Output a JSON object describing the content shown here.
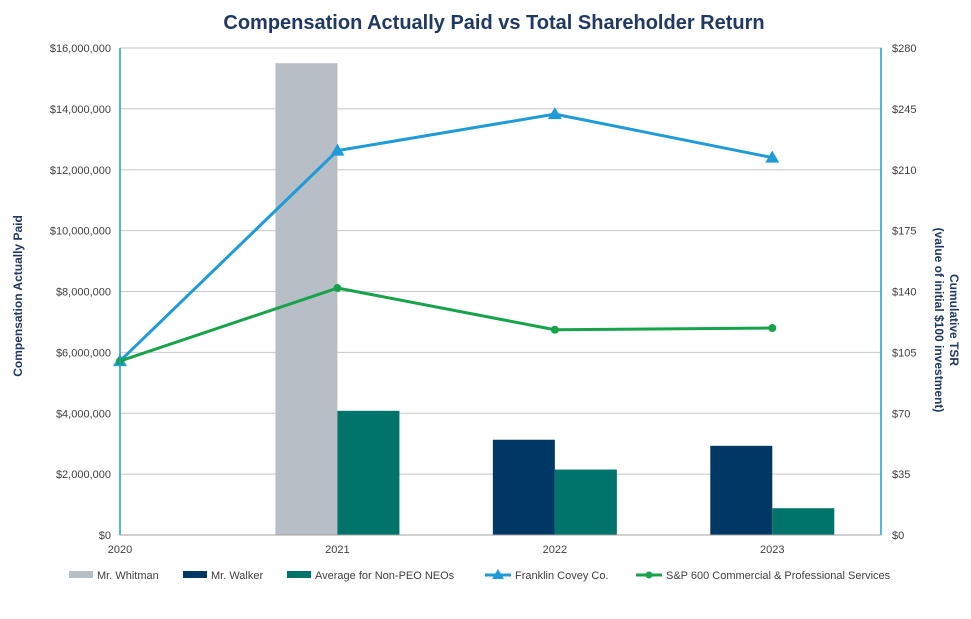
{
  "chart_data": {
    "type": "bar+line",
    "title": "Compensation Actually Paid vs Total Shareholder Return",
    "ylabel_left": "Compensation Actually Paid",
    "ylabel_right_line1": "Cumulative TSR",
    "ylabel_right_line2": "(value of initial $100 investment)",
    "categories": [
      "2020",
      "2021",
      "2022",
      "2023"
    ],
    "ylim_left": [
      0,
      16000000
    ],
    "ylim_right": [
      0,
      280
    ],
    "left_ticks": [
      "$0",
      "$2,000,000",
      "$4,000,000",
      "$6,000,000",
      "$8,000,000",
      "$10,000,000",
      "$12,000,000",
      "$14,000,000",
      "$16,000,000"
    ],
    "right_ticks": [
      "$0",
      "$35",
      "$70",
      "$105",
      "$140",
      "$175",
      "$210",
      "$245",
      "$280"
    ],
    "bar_series": [
      {
        "name": "Mr. Whitman",
        "color": "#b8bec6",
        "values": [
          null,
          15500000,
          null,
          null
        ]
      },
      {
        "name": "Mr. Walker",
        "color": "#003865",
        "values": [
          null,
          null,
          3130000,
          2930000
        ]
      },
      {
        "name": "Average for Non-PEO NEOs",
        "color": "#00736a",
        "values": [
          null,
          4080000,
          2150000,
          880000
        ]
      }
    ],
    "line_series": [
      {
        "name": "Franklin Covey Co.",
        "color": "#1f9bd7",
        "marker": "triangle",
        "values": [
          100,
          221,
          242,
          217
        ]
      },
      {
        "name": "S&P 600 Commercial & Professional Services",
        "color": "#16a34a",
        "marker": "circle",
        "values": [
          100,
          142,
          118,
          119
        ]
      }
    ]
  }
}
